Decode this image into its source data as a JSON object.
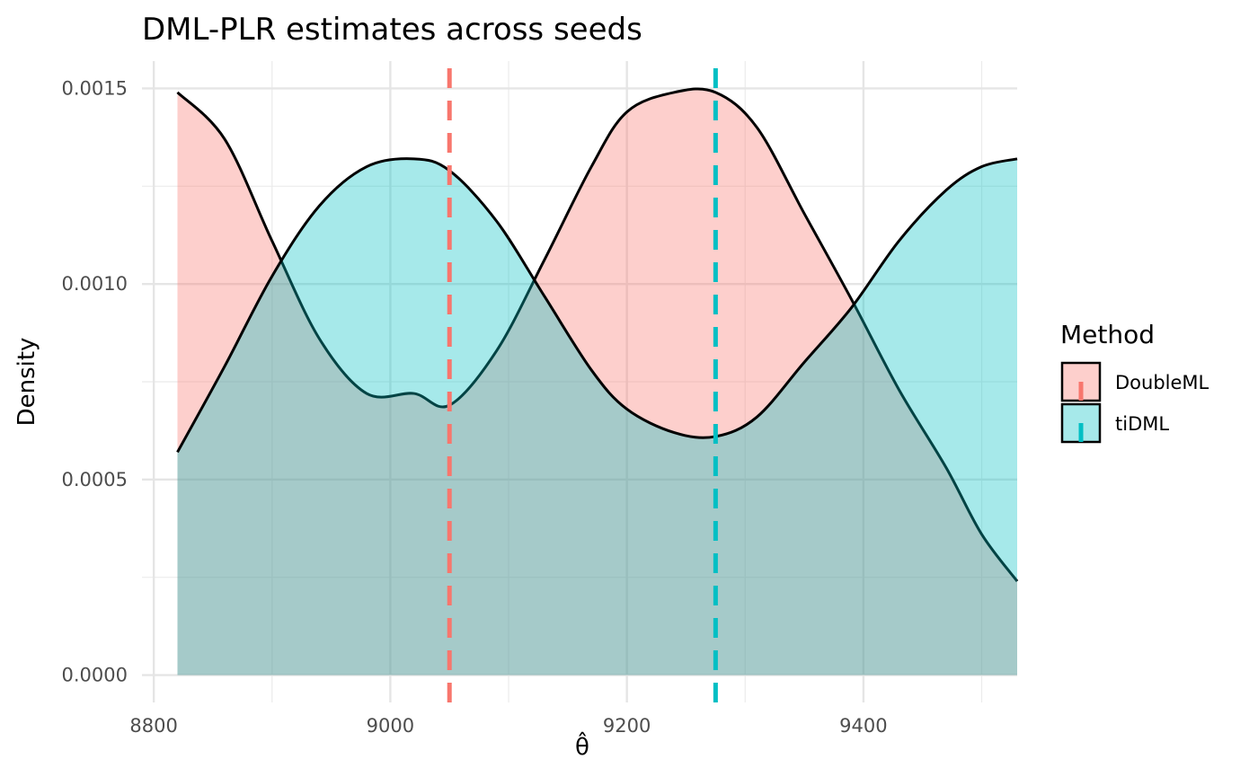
{
  "chart_data": {
    "type": "area",
    "title": "DML-PLR estimates across seeds",
    "xlabel": "θ̂",
    "ylabel": "Density",
    "xlim": [
      8790,
      9530
    ],
    "ylim": [
      -7e-05,
      0.00157
    ],
    "x_ticks": [
      8800,
      9000,
      9200,
      9400
    ],
    "x_tick_labels": [
      "8800",
      "9000",
      "9200",
      "9400"
    ],
    "y_ticks": [
      0.0,
      0.0005,
      0.001,
      0.0015
    ],
    "y_tick_labels": [
      "0.0000",
      "0.0005",
      "0.0010",
      "0.0015"
    ],
    "grid": true,
    "legend": {
      "title": "Method",
      "position": "right"
    },
    "series": [
      {
        "name": "DoubleML",
        "color": "#F8766D",
        "fill_opacity": 0.35,
        "mean_line": 9050,
        "x": [
          8820,
          8860,
          8900,
          8940,
          8980,
          9020,
          9050,
          9090,
          9130,
          9170,
          9200,
          9240,
          9275,
          9310,
          9350,
          9390,
          9430,
          9470,
          9500,
          9530
        ],
        "y": [
          0.00149,
          0.00137,
          0.00111,
          0.00086,
          0.00072,
          0.00072,
          0.00069,
          0.00083,
          0.00106,
          0.0013,
          0.00144,
          0.00149,
          0.00149,
          0.0014,
          0.00118,
          0.00096,
          0.00073,
          0.00053,
          0.00036,
          0.00024
        ]
      },
      {
        "name": "tiDML",
        "color": "#00BFC4",
        "fill_opacity": 0.35,
        "mean_line": 9275,
        "x": [
          8820,
          8860,
          8900,
          8940,
          8980,
          9020,
          9050,
          9090,
          9130,
          9170,
          9200,
          9240,
          9275,
          9310,
          9350,
          9390,
          9430,
          9470,
          9500,
          9530
        ],
        "y": [
          0.00057,
          0.00079,
          0.00102,
          0.0012,
          0.0013,
          0.00132,
          0.00129,
          0.00116,
          0.00097,
          0.00078,
          0.00068,
          0.00062,
          0.00061,
          0.00066,
          0.0008,
          0.00094,
          0.00111,
          0.00124,
          0.0013,
          0.00132
        ]
      }
    ]
  }
}
